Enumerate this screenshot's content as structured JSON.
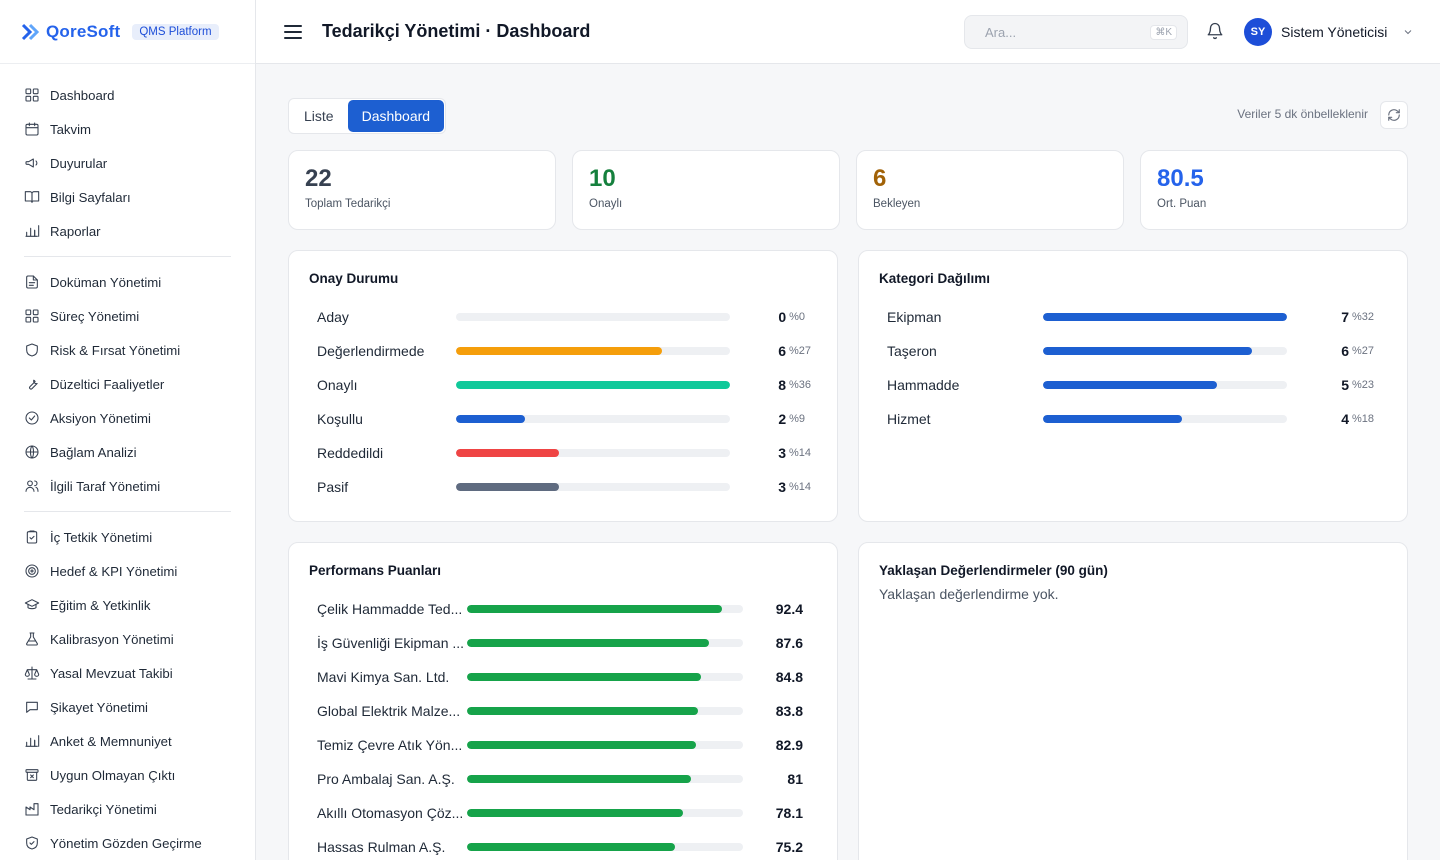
{
  "brand": {
    "name": "QoreSoft",
    "badge": "QMS Platform"
  },
  "sidebar": {
    "groups": [
      [
        {
          "label": "Dashboard",
          "icon": "grid-icon"
        },
        {
          "label": "Takvim",
          "icon": "calendar-icon"
        },
        {
          "label": "Duyurular",
          "icon": "megaphone-icon"
        },
        {
          "label": "Bilgi Sayfaları",
          "icon": "book-icon"
        },
        {
          "label": "Raporlar",
          "icon": "bar-chart-icon"
        }
      ],
      [
        {
          "label": "Doküman Yönetimi",
          "icon": "document-icon"
        },
        {
          "label": "Süreç Yönetimi",
          "icon": "grid-icon"
        },
        {
          "label": "Risk & Fırsat Yönetimi",
          "icon": "shield-icon"
        },
        {
          "label": "Düzeltici Faaliyetler",
          "icon": "wrench-icon"
        },
        {
          "label": "Aksiyon Yönetimi",
          "icon": "check-circle-icon"
        },
        {
          "label": "Bağlam Analizi",
          "icon": "globe-icon"
        },
        {
          "label": "İlgili Taraf Yönetimi",
          "icon": "users-icon"
        }
      ],
      [
        {
          "label": "İç Tetkik Yönetimi",
          "icon": "clipboard-check-icon"
        },
        {
          "label": "Hedef & KPI Yönetimi",
          "icon": "target-icon"
        },
        {
          "label": "Eğitim & Yetkinlik",
          "icon": "graduation-cap-icon"
        },
        {
          "label": "Kalibrasyon Yönetimi",
          "icon": "flask-icon"
        },
        {
          "label": "Yasal Mevzuat Takibi",
          "icon": "scale-icon"
        },
        {
          "label": "Şikayet Yönetimi",
          "icon": "message-icon"
        },
        {
          "label": "Anket & Memnuniyet",
          "icon": "bar-chart-icon"
        },
        {
          "label": "Uygun Olmayan Çıktı",
          "icon": "archive-x-icon"
        },
        {
          "label": "Tedarikçi Yönetimi",
          "icon": "factory-icon"
        },
        {
          "label": "Yönetim Gözden Geçirme",
          "icon": "shield-check-icon"
        }
      ]
    ]
  },
  "header": {
    "title": "Tedarikçi Yönetimi · Dashboard",
    "search_placeholder": "Ara...",
    "search_shortcut": "⌘K",
    "user_initials": "SY",
    "user_name": "Sistem Yöneticisi"
  },
  "toolbar": {
    "tabs": [
      {
        "label": "Liste",
        "active": false
      },
      {
        "label": "Dashboard",
        "active": true
      }
    ],
    "cache_note": "Veriler 5 dk önbelleklenir"
  },
  "stats": [
    {
      "value": "22",
      "label": "Toplam Tedarikçi",
      "color": "#374151"
    },
    {
      "value": "10",
      "label": "Onaylı",
      "color": "#15803d"
    },
    {
      "value": "6",
      "label": "Bekleyen",
      "color": "#a16207"
    },
    {
      "value": "80.5",
      "label": "Ort. Puan",
      "color": "#2563eb"
    }
  ],
  "approval": {
    "title": "Onay Durumu",
    "max": 8,
    "rows": [
      {
        "label": "Aday",
        "count": 0,
        "pct": "%0",
        "color": "#9ca3af"
      },
      {
        "label": "Değerlendirmede",
        "count": 6,
        "pct": "%27",
        "color": "#f59e0b"
      },
      {
        "label": "Onaylı",
        "count": 8,
        "pct": "%36",
        "color": "#10c99a"
      },
      {
        "label": "Koşullu",
        "count": 2,
        "pct": "%9",
        "color": "#1d5fd1"
      },
      {
        "label": "Reddedildi",
        "count": 3,
        "pct": "%14",
        "color": "#ef4444"
      },
      {
        "label": "Pasif",
        "count": 3,
        "pct": "%14",
        "color": "#5f6b80"
      }
    ]
  },
  "category": {
    "title": "Kategori Dağılımı",
    "max": 7,
    "color": "#1d5fd1",
    "rows": [
      {
        "label": "Ekipman",
        "count": 7,
        "pct": "%32"
      },
      {
        "label": "Taşeron",
        "count": 6,
        "pct": "%27"
      },
      {
        "label": "Hammadde",
        "count": 5,
        "pct": "%23"
      },
      {
        "label": "Hizmet",
        "count": 4,
        "pct": "%18"
      }
    ]
  },
  "performance": {
    "title": "Performans Puanları",
    "max": 100,
    "color": "#16a34a",
    "rows": [
      {
        "label": "Çelik Hammadde Ted...",
        "score": 92.4
      },
      {
        "label": "İş Güvenliği Ekipman ...",
        "score": 87.6
      },
      {
        "label": "Mavi Kimya San. Ltd.",
        "score": 84.8
      },
      {
        "label": "Global Elektrik Malze...",
        "score": 83.8
      },
      {
        "label": "Temiz Çevre Atık Yön...",
        "score": 82.9
      },
      {
        "label": "Pro Ambalaj San. A.Ş.",
        "score": 81
      },
      {
        "label": "Akıllı Otomasyon Çöz...",
        "score": 78.1
      },
      {
        "label": "Hassas Rulman A.Ş.",
        "score": 75.2
      }
    ]
  },
  "upcoming": {
    "title": "Yaklaşan Değerlendirmeler (90 gün)",
    "empty": "Yaklaşan değerlendirme yok."
  }
}
